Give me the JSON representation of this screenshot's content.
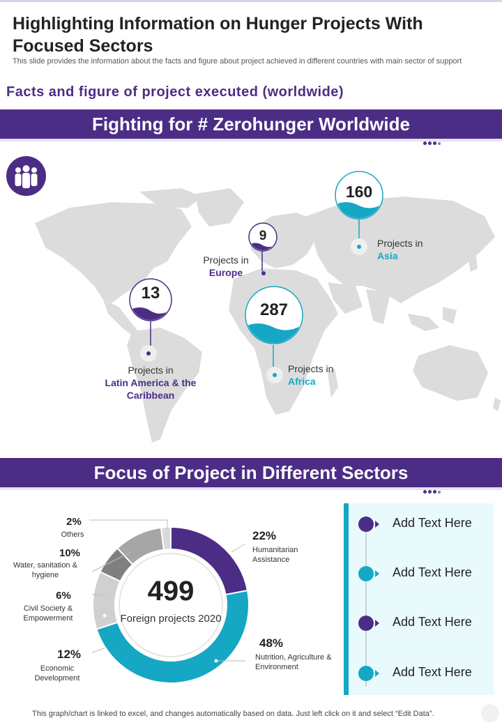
{
  "slide": {
    "title": "Highlighting Information on Hunger Projects With Focused Sectors",
    "subtitle": "This slide provides the information about the facts and figure about project achieved in different countries with main sector of support"
  },
  "section_heading": "Facts and figure of project executed (worldwide)",
  "band1": {
    "title": "Fighting for # Zerohunger Worldwide"
  },
  "band2": {
    "title": "Focus of Project in Different Sectors"
  },
  "map_pins": [
    {
      "number": "13",
      "prefix": "Projects in",
      "region": "Latin America & the Caribbean",
      "color": "#4b2d86"
    },
    {
      "number": "9",
      "prefix": "Projects in",
      "region": "Europe",
      "color": "#4b2d86"
    },
    {
      "number": "287",
      "prefix": "Projects in",
      "region": "Africa",
      "color": "#15a7c3"
    },
    {
      "number": "160",
      "prefix": "Projects in",
      "region": "Asia",
      "color": "#15a7c3"
    }
  ],
  "chart_data": {
    "type": "pie",
    "variant": "donut",
    "center_value": "499",
    "center_label": "Foreign projects 2020",
    "slices": [
      {
        "label": "Humanitarian Assistance",
        "pct_text": "22%",
        "value": 22,
        "color": "#4b2d86"
      },
      {
        "label": "Nutrition, Agriculture & Environment",
        "pct_text": "48%",
        "value": 48,
        "color": "#15a7c3"
      },
      {
        "label": "Economic Development",
        "pct_text": "12%",
        "value": 12,
        "color": "#d0d0d0"
      },
      {
        "label": "Civil Society & Empowerment",
        "pct_text": "6%",
        "value": 6,
        "color": "#7f7f7f"
      },
      {
        "label": "Water, sanitation & hygiene",
        "pct_text": "10%",
        "value": 10,
        "color": "#a6a6a6"
      },
      {
        "label": "Others",
        "pct_text": "2%",
        "value": 2,
        "color": "#d9d9d9"
      }
    ]
  },
  "panel": {
    "items": [
      {
        "text": "Add Text Here",
        "color": "#4b2d86"
      },
      {
        "text": "Add Text Here",
        "color": "#15a7c3"
      },
      {
        "text": "Add Text Here",
        "color": "#4b2d86"
      },
      {
        "text": "Add Text Here",
        "color": "#15a7c3"
      }
    ]
  },
  "footer": "This graph/chart is linked to excel, and changes automatically based on data. Just left click on it and select “Edit Data”.",
  "colors": {
    "purple": "#4b2d86",
    "teal": "#15a7c3",
    "map_grey": "#dcdcdc"
  }
}
